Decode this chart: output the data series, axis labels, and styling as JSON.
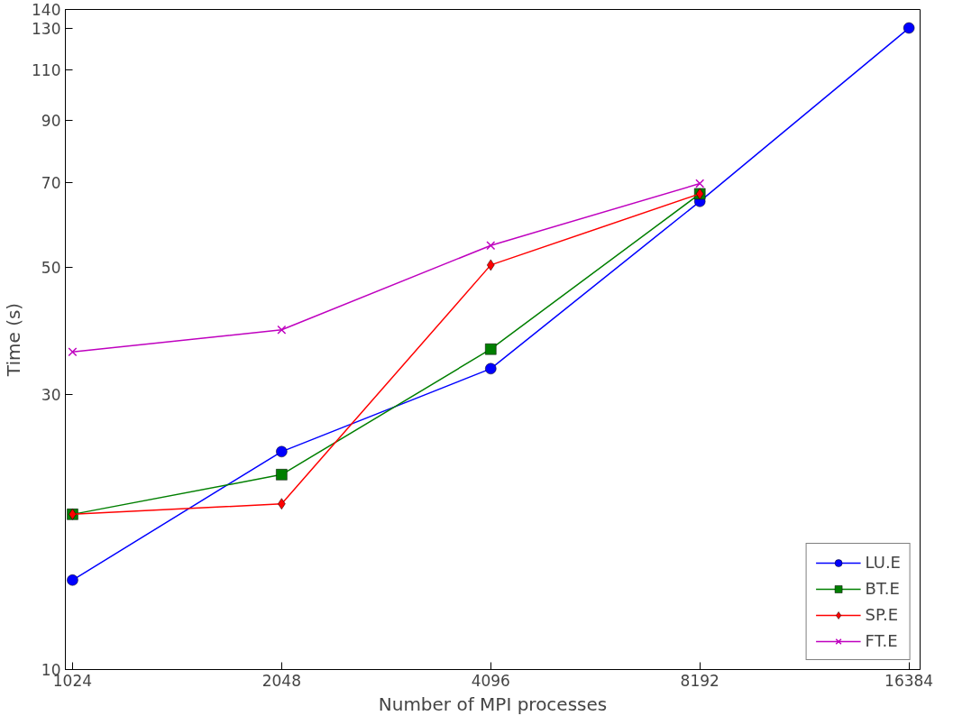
{
  "chart_data": {
    "type": "line",
    "xlabel": "Number of MPI processes",
    "ylabel": "Time (s)",
    "x": [
      1024,
      2048,
      4096,
      8192,
      16384
    ],
    "series": [
      {
        "name": "LU.E",
        "color": "#0000ff",
        "marker": "circle",
        "values": [
          14.3,
          23.9,
          33.3,
          65,
          130
        ]
      },
      {
        "name": "BT.E",
        "color": "#007f00",
        "marker": "square",
        "values": [
          18.6,
          21.8,
          36,
          67,
          null
        ]
      },
      {
        "name": "SP.E",
        "color": "#ff0000",
        "marker": "diamond",
        "values": [
          18.6,
          19.4,
          50.4,
          67,
          null
        ]
      },
      {
        "name": "FT.E",
        "color": "#bf00bf",
        "marker": "cross",
        "values": [
          35.6,
          38.9,
          54.5,
          69.8,
          null
        ]
      }
    ],
    "log": "xy",
    "xlim": [
      1000,
      17000
    ],
    "ylim": [
      10,
      140
    ],
    "xticks": [
      1024,
      2048,
      4096,
      8192,
      16384
    ],
    "yticks": [
      10,
      30,
      50,
      70,
      90,
      110,
      130,
      140
    ],
    "grid": false,
    "legend": "bottom right",
    "line_style": "solid"
  }
}
